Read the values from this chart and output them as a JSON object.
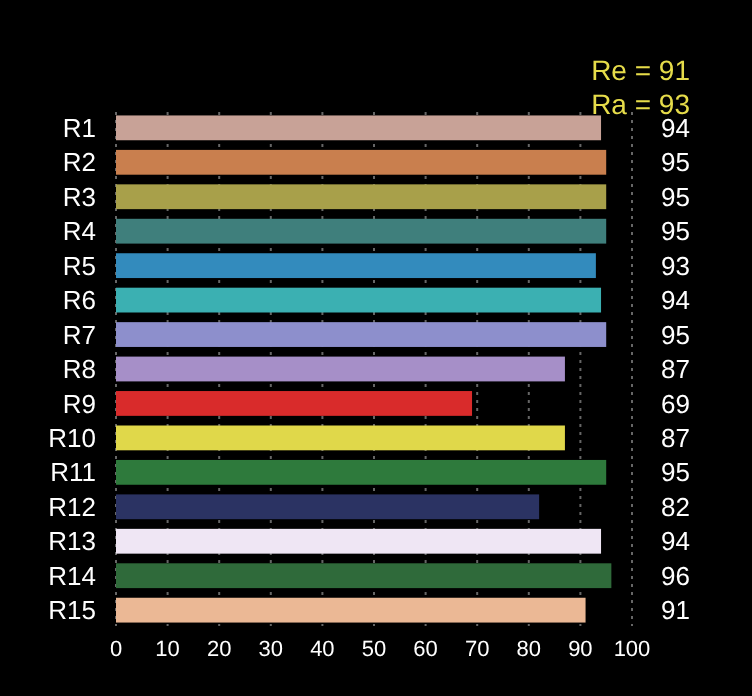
{
  "chart_data": {
    "type": "bar",
    "orientation": "horizontal",
    "categories": [
      "R1",
      "R2",
      "R3",
      "R4",
      "R5",
      "R6",
      "R7",
      "R8",
      "R9",
      "R10",
      "R11",
      "R12",
      "R13",
      "R14",
      "R15"
    ],
    "values": [
      94,
      95,
      95,
      95,
      93,
      94,
      95,
      87,
      69,
      87,
      95,
      82,
      94,
      96,
      91
    ],
    "colors": [
      "#c8a297",
      "#c97f4e",
      "#a8a04a",
      "#3f7f7c",
      "#338bbd",
      "#3bb0b2",
      "#8d8fcc",
      "#a68fc8",
      "#d92b2b",
      "#e0d84a",
      "#2e7a3c",
      "#2b3363",
      "#efe6f4",
      "#2f6a3a",
      "#ebb895"
    ],
    "xlim": [
      0,
      100
    ],
    "xticks": [
      0,
      10,
      20,
      30,
      40,
      50,
      60,
      70,
      80,
      90,
      100
    ],
    "grid": "x",
    "data_labels": true,
    "annotations": [
      "Re = 91",
      "Ra = 93"
    ]
  }
}
